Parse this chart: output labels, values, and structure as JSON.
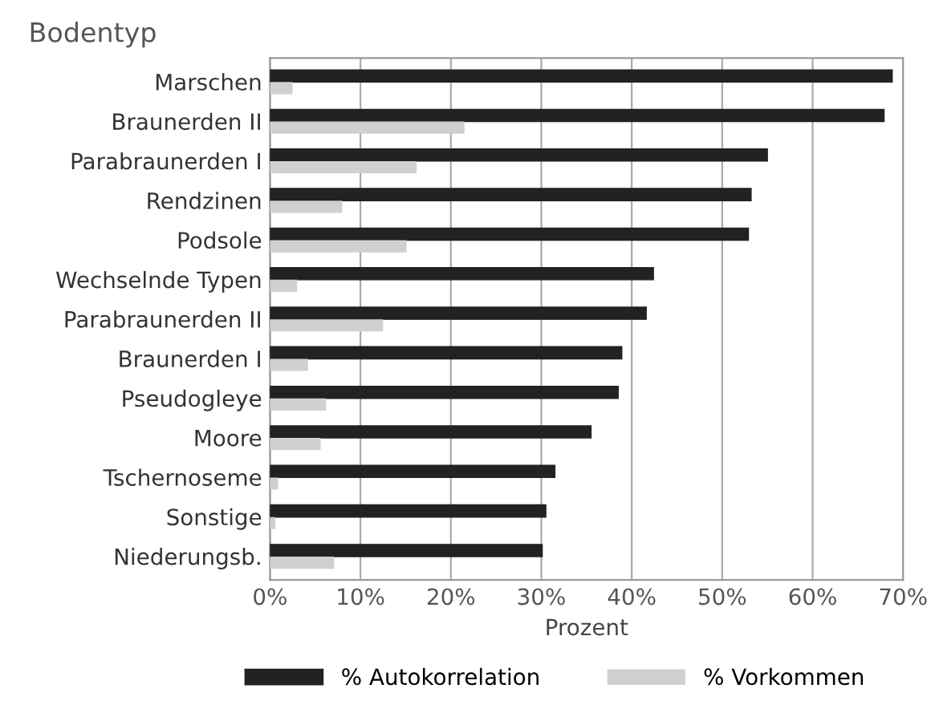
{
  "chart_data": {
    "type": "bar",
    "orientation": "horizontal",
    "ylabel": "Bodentyp",
    "xlabel": "Prozent",
    "categories": [
      "Marschen",
      "Braunerden II",
      "Parabraunerden I",
      "Rendzinen",
      "Podsole",
      "Wechselnde Typen",
      "Parabraunerden II",
      "Braunerden I",
      "Pseudogleye",
      "Moore",
      "Tschernoseme",
      "Sonstige",
      "Niederungsb."
    ],
    "series": [
      {
        "name": "% Autokorrelation",
        "color": "#222222",
        "values": [
          68.8,
          67.9,
          55.0,
          53.2,
          52.9,
          42.4,
          41.6,
          38.9,
          38.5,
          35.5,
          31.5,
          30.5,
          30.1
        ]
      },
      {
        "name": "% Vorkommen",
        "color": "#d0d0d0",
        "values": [
          2.5,
          21.5,
          16.2,
          8.0,
          15.1,
          3.0,
          12.5,
          4.2,
          6.2,
          5.6,
          0.9,
          0.6,
          7.1
        ]
      }
    ],
    "xlim": [
      0,
      70
    ],
    "xticks": [
      {
        "value": 0,
        "label": "0%"
      },
      {
        "value": 10,
        "label": "10%"
      },
      {
        "value": 20,
        "label": "20%"
      },
      {
        "value": 30,
        "label": "30%"
      },
      {
        "value": 40,
        "label": "40%"
      },
      {
        "value": 50,
        "label": "50%"
      },
      {
        "value": 60,
        "label": "60%"
      },
      {
        "value": 70,
        "label": "70%"
      }
    ],
    "grid": "x",
    "legend": "bottom"
  }
}
